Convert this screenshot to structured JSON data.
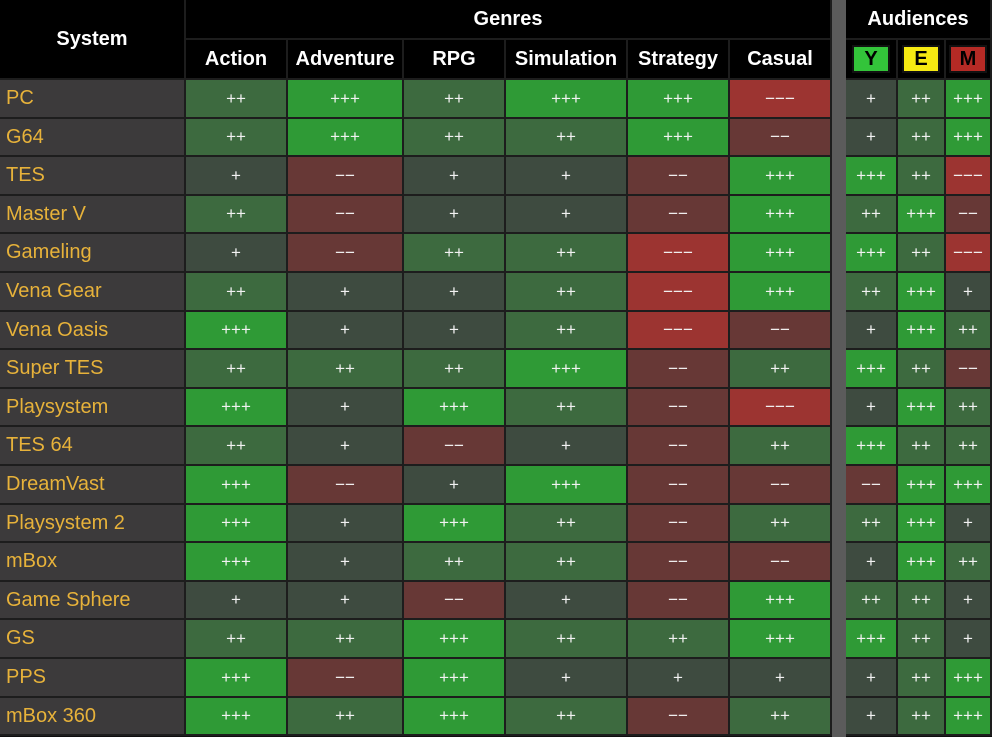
{
  "header": {
    "system_label": "System",
    "genres_label": "Genres",
    "audiences_label": "Audiences"
  },
  "genres": [
    "Action",
    "Adventure",
    "RPG",
    "Simulation",
    "Strategy",
    "Casual"
  ],
  "audiences": [
    {
      "label": "Y",
      "bg": "#33c43a",
      "color": "#000000"
    },
    {
      "label": "E",
      "bg": "#f6ea12",
      "color": "#000000"
    },
    {
      "label": "M",
      "bg": "#b52a25",
      "color": "#000000"
    }
  ],
  "legend_colors": {
    "+++": "#2f9a36",
    "++": "#3d6a3f",
    "+": "#3e4b40",
    "−−": "#673836",
    "−−−": "#9c3431"
  },
  "rows": [
    {
      "system": "PC",
      "genres": [
        "++",
        "+++",
        "++",
        "+++",
        "+++",
        "−−−"
      ],
      "audiences": [
        "+",
        "++",
        "+++"
      ]
    },
    {
      "system": "G64",
      "genres": [
        "++",
        "+++",
        "++",
        "++",
        "+++",
        "−−"
      ],
      "audiences": [
        "+",
        "++",
        "+++"
      ]
    },
    {
      "system": "TES",
      "genres": [
        "+",
        "−−",
        "+",
        "+",
        "−−",
        "+++"
      ],
      "audiences": [
        "+++",
        "++",
        "−−−"
      ]
    },
    {
      "system": "Master V",
      "genres": [
        "++",
        "−−",
        "+",
        "+",
        "−−",
        "+++"
      ],
      "audiences": [
        "++",
        "+++",
        "−−"
      ]
    },
    {
      "system": "Gameling",
      "genres": [
        "+",
        "−−",
        "++",
        "++",
        "−−−",
        "+++"
      ],
      "audiences": [
        "+++",
        "++",
        "−−−"
      ]
    },
    {
      "system": "Vena Gear",
      "genres": [
        "++",
        "+",
        "+",
        "++",
        "−−−",
        "+++"
      ],
      "audiences": [
        "++",
        "+++",
        "+"
      ]
    },
    {
      "system": "Vena Oasis",
      "genres": [
        "+++",
        "+",
        "+",
        "++",
        "−−−",
        "−−"
      ],
      "audiences": [
        "+",
        "+++",
        "++"
      ]
    },
    {
      "system": "Super TES",
      "genres": [
        "++",
        "++",
        "++",
        "+++",
        "−−",
        "++"
      ],
      "audiences": [
        "+++",
        "++",
        "−−"
      ]
    },
    {
      "system": "Playsystem",
      "genres": [
        "+++",
        "+",
        "+++",
        "++",
        "−−",
        "−−−"
      ],
      "audiences": [
        "+",
        "+++",
        "++"
      ]
    },
    {
      "system": "TES 64",
      "genres": [
        "++",
        "+",
        "−−",
        "+",
        "−−",
        "++"
      ],
      "audiences": [
        "+++",
        "++",
        "++"
      ]
    },
    {
      "system": "DreamVast",
      "genres": [
        "+++",
        "−−",
        "+",
        "+++",
        "−−",
        "−−"
      ],
      "audiences": [
        "−−",
        "+++",
        "+++"
      ]
    },
    {
      "system": "Playsystem 2",
      "genres": [
        "+++",
        "+",
        "+++",
        "++",
        "−−",
        "++"
      ],
      "audiences": [
        "++",
        "+++",
        "+"
      ]
    },
    {
      "system": "mBox",
      "genres": [
        "+++",
        "+",
        "++",
        "++",
        "−−",
        "−−"
      ],
      "audiences": [
        "+",
        "+++",
        "++"
      ]
    },
    {
      "system": "Game Sphere",
      "genres": [
        "+",
        "+",
        "−−",
        "+",
        "−−",
        "+++"
      ],
      "audiences": [
        "++",
        "++",
        "+"
      ]
    },
    {
      "system": "GS",
      "genres": [
        "++",
        "++",
        "+++",
        "++",
        "++",
        "+++"
      ],
      "audiences": [
        "+++",
        "++",
        "+"
      ]
    },
    {
      "system": "PPS",
      "genres": [
        "+++",
        "−−",
        "+++",
        "+",
        "+",
        "+"
      ],
      "audiences": [
        "+",
        "++",
        "+++"
      ]
    },
    {
      "system": "mBox 360",
      "genres": [
        "+++",
        "++",
        "+++",
        "++",
        "−−",
        "++"
      ],
      "audiences": [
        "+",
        "++",
        "+++"
      ]
    }
  ]
}
